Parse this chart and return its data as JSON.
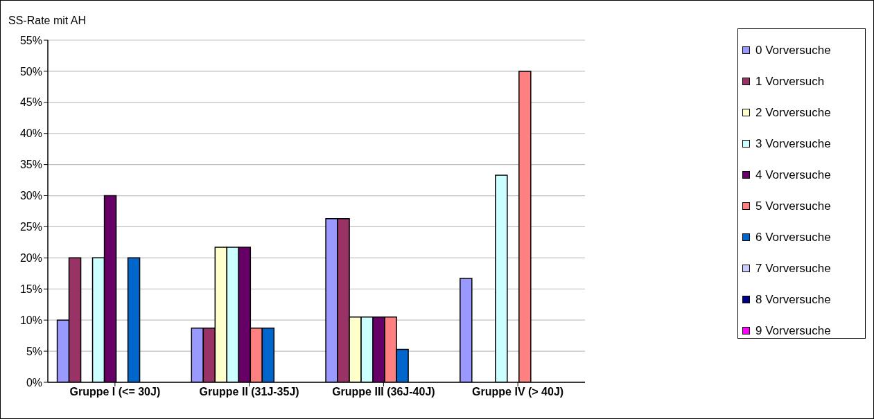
{
  "chart_data": {
    "type": "bar",
    "ylabel": "SS-Rate mit AH",
    "categories": [
      "Gruppe I (<= 30J)",
      "Gruppe II (31J-35J)",
      "Gruppe III (36J-40J)",
      "Gruppe IV (> 40J)"
    ],
    "series": [
      {
        "name": "0 Vorversuche",
        "color": "#9999ff",
        "values": [
          10,
          8.7,
          26.3,
          16.7
        ]
      },
      {
        "name": "1 Vorversuch",
        "color": "#993366",
        "values": [
          20,
          8.7,
          26.3,
          0
        ]
      },
      {
        "name": "2 Vorversuche",
        "color": "#ffffcc",
        "values": [
          0,
          21.7,
          10.5,
          0
        ]
      },
      {
        "name": "3 Vorversuche",
        "color": "#ccffff",
        "values": [
          20,
          21.7,
          10.5,
          33.3
        ]
      },
      {
        "name": "4 Vorversuche",
        "color": "#660066",
        "values": [
          30,
          21.7,
          10.5,
          0
        ]
      },
      {
        "name": "5 Vorversuche",
        "color": "#ff8080",
        "values": [
          0,
          8.7,
          10.5,
          50
        ]
      },
      {
        "name": "6 Vorversuche",
        "color": "#0066cc",
        "values": [
          20,
          8.7,
          5.3,
          0
        ]
      },
      {
        "name": "7 Vorversuche",
        "color": "#ccccff",
        "values": [
          0,
          0,
          0,
          0
        ]
      },
      {
        "name": "8 Vorversuche",
        "color": "#000080",
        "values": [
          0,
          0,
          0,
          0
        ]
      },
      {
        "name": "9 Vorversuche",
        "color": "#ff00ff",
        "values": [
          0,
          0,
          0,
          0
        ]
      }
    ],
    "ylim": [
      0,
      55
    ],
    "yticks": [
      {
        "value": 0,
        "label": "0%"
      },
      {
        "value": 5,
        "label": "5%"
      },
      {
        "value": 10,
        "label": "10%"
      },
      {
        "value": 15,
        "label": "15%"
      },
      {
        "value": 20,
        "label": "20%"
      },
      {
        "value": 25,
        "label": "25%"
      },
      {
        "value": 30,
        "label": "30%"
      },
      {
        "value": 35,
        "label": "35%"
      },
      {
        "value": 40,
        "label": "40%"
      },
      {
        "value": 45,
        "label": "45%"
      },
      {
        "value": 50,
        "label": "50%"
      },
      {
        "value": 55,
        "label": "55%"
      }
    ],
    "grid": "y",
    "legend": "right"
  }
}
